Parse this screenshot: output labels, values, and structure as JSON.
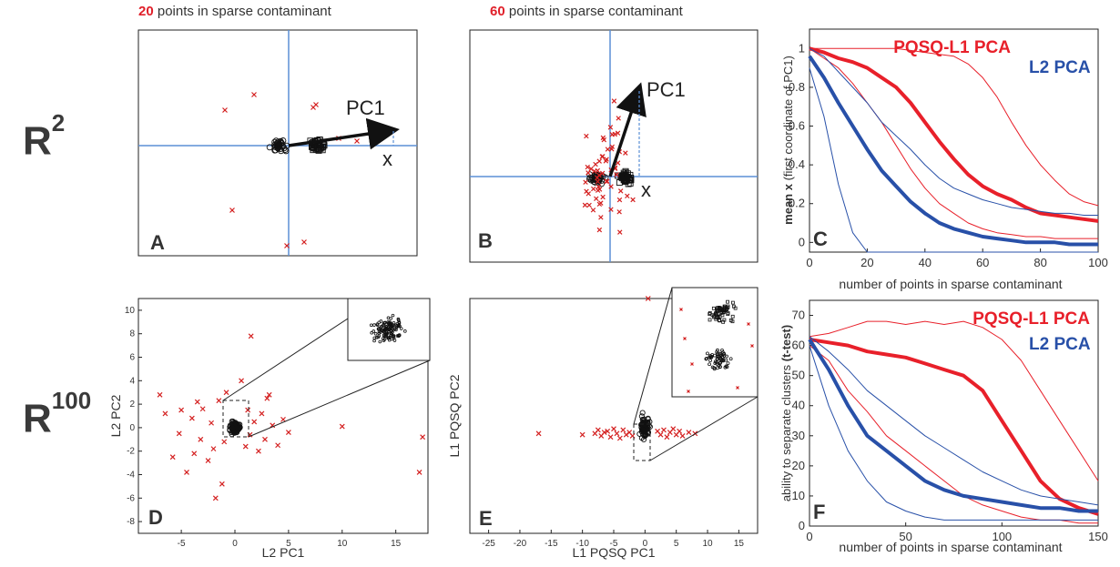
{
  "header": {
    "a": {
      "count": "20",
      "rest": " points in sparse contaminant"
    },
    "b": {
      "count": "60",
      "rest": " points in sparse contaminant"
    }
  },
  "row_labels": {
    "r2": {
      "base": "R",
      "sup": "2"
    },
    "r100": {
      "base": "R",
      "sup": "100"
    }
  },
  "panels": {
    "A": {
      "letter": "A",
      "arrow_label": "PC1",
      "x_label": "x"
    },
    "B": {
      "letter": "B",
      "arrow_label": "PC1",
      "x_label": "x"
    },
    "C": {
      "letter": "C"
    },
    "D": {
      "letter": "D",
      "xlabel": "L2 PC1",
      "ylabel": "L2  PC2"
    },
    "E": {
      "letter": "E",
      "xlabel": "L1 PQSQ PC1",
      "ylabel": "L1 PQSQ PC2"
    },
    "F": {
      "letter": "F"
    }
  },
  "colors": {
    "red": "#e8202a",
    "blue": "#2850a8",
    "axis_line": "#5b8fd6",
    "marker": "#d42020"
  },
  "chart_data": [
    {
      "id": "C",
      "type": "line",
      "xlabel": "number of points in sparse contaminant",
      "ylabel_bold": "mean x",
      "ylabel_rest": " (first coordinate of PC1)",
      "xlim": [
        0,
        100
      ],
      "ylim": [
        -0.05,
        1.1
      ],
      "xticks": [
        0,
        20,
        40,
        60,
        80,
        100
      ],
      "yticks": [
        0,
        0.2,
        0.4,
        0.6,
        0.8,
        1
      ],
      "legend": [
        "PQSQ-L1 PCA",
        "L2 PCA"
      ],
      "legend_position": "top-right",
      "x": [
        0,
        5,
        10,
        15,
        20,
        25,
        30,
        35,
        40,
        45,
        50,
        55,
        60,
        65,
        70,
        75,
        80,
        85,
        90,
        95,
        100
      ],
      "series": [
        {
          "name": "PQSQ-L1 PCA",
          "color": "red",
          "kind": "mean",
          "values": [
            1.0,
            0.98,
            0.95,
            0.93,
            0.9,
            0.85,
            0.8,
            0.72,
            0.62,
            0.52,
            0.43,
            0.35,
            0.29,
            0.25,
            0.22,
            0.18,
            0.15,
            0.14,
            0.13,
            0.12,
            0.11
          ]
        },
        {
          "name": "PQSQ-L1 PCA",
          "color": "red",
          "kind": "upper",
          "values": [
            1.0,
            1.0,
            1.0,
            1.0,
            1.0,
            1.0,
            1.0,
            0.99,
            0.98,
            0.97,
            0.96,
            0.92,
            0.85,
            0.75,
            0.62,
            0.5,
            0.4,
            0.32,
            0.25,
            0.21,
            0.19
          ]
        },
        {
          "name": "PQSQ-L1 PCA",
          "color": "red",
          "kind": "lower",
          "values": [
            1.0,
            0.95,
            0.9,
            0.82,
            0.72,
            0.62,
            0.5,
            0.38,
            0.28,
            0.2,
            0.15,
            0.1,
            0.07,
            0.05,
            0.04,
            0.03,
            0.03,
            0.02,
            0.02,
            0.02,
            0.02
          ]
        },
        {
          "name": "L2 PCA",
          "color": "blue",
          "kind": "mean",
          "values": [
            0.96,
            0.85,
            0.72,
            0.6,
            0.48,
            0.37,
            0.29,
            0.21,
            0.15,
            0.1,
            0.07,
            0.05,
            0.03,
            0.02,
            0.01,
            0.0,
            0.0,
            0.0,
            -0.01,
            -0.01,
            -0.01
          ]
        },
        {
          "name": "L2 PCA",
          "color": "blue",
          "kind": "upper",
          "values": [
            1.0,
            0.96,
            0.88,
            0.8,
            0.72,
            0.62,
            0.55,
            0.48,
            0.4,
            0.33,
            0.28,
            0.25,
            0.22,
            0.2,
            0.18,
            0.17,
            0.16,
            0.15,
            0.15,
            0.14,
            0.14
          ]
        },
        {
          "name": "L2 PCA",
          "color": "blue",
          "kind": "lower",
          "values": [
            0.9,
            0.65,
            0.3,
            0.05,
            -0.05,
            -0.05,
            -0.05,
            -0.05,
            -0.05,
            -0.05,
            -0.05,
            -0.05,
            -0.05,
            -0.05,
            -0.05,
            -0.05,
            -0.05,
            -0.05,
            -0.05,
            -0.05,
            -0.05
          ]
        }
      ]
    },
    {
      "id": "F",
      "type": "line",
      "xlabel": "number of points in sparse contaminant",
      "ylabel": "ability to separate clusters ",
      "ylabel_bold": "(t-test)",
      "xlim": [
        0,
        150
      ],
      "ylim": [
        0,
        75
      ],
      "xticks": [
        0,
        50,
        100,
        150
      ],
      "yticks": [
        0,
        10,
        20,
        30,
        40,
        50,
        60,
        70
      ],
      "legend": [
        "PQSQ-L1 PCA",
        "L2 PCA"
      ],
      "legend_position": "top-right",
      "x": [
        0,
        10,
        20,
        30,
        40,
        50,
        60,
        70,
        80,
        90,
        100,
        110,
        120,
        130,
        140,
        150
      ],
      "series": [
        {
          "name": "PQSQ-L1 PCA",
          "color": "red",
          "kind": "mean",
          "values": [
            62,
            61,
            60,
            58,
            57,
            56,
            54,
            52,
            50,
            45,
            35,
            25,
            15,
            9,
            6,
            4
          ]
        },
        {
          "name": "PQSQ-L1 PCA",
          "color": "red",
          "kind": "upper",
          "values": [
            63,
            64,
            66,
            68,
            68,
            67,
            68,
            67,
            68,
            66,
            62,
            55,
            45,
            35,
            25,
            15
          ]
        },
        {
          "name": "PQSQ-L1 PCA",
          "color": "red",
          "kind": "lower",
          "values": [
            60,
            55,
            45,
            38,
            30,
            25,
            20,
            15,
            10,
            7,
            5,
            3,
            2,
            2,
            1,
            1
          ]
        },
        {
          "name": "L2 PCA",
          "color": "blue",
          "kind": "mean",
          "values": [
            62,
            52,
            40,
            30,
            25,
            20,
            15,
            12,
            10,
            9,
            8,
            7,
            6,
            6,
            5,
            5
          ]
        },
        {
          "name": "L2 PCA",
          "color": "blue",
          "kind": "upper",
          "values": [
            63,
            58,
            52,
            45,
            40,
            35,
            30,
            26,
            22,
            18,
            15,
            12,
            10,
            9,
            8,
            7
          ]
        },
        {
          "name": "L2 PCA",
          "color": "blue",
          "kind": "lower",
          "values": [
            60,
            40,
            25,
            15,
            8,
            5,
            3,
            2,
            2,
            2,
            2,
            2,
            2,
            2,
            2,
            2
          ]
        }
      ]
    },
    {
      "id": "D",
      "type": "scatter",
      "xlim": [
        -9,
        18
      ],
      "ylim": [
        -9,
        11
      ],
      "xticks": [
        -5,
        0,
        5,
        10,
        15
      ],
      "yticks": [
        -8,
        -6,
        -4,
        -2,
        0,
        2,
        4,
        6,
        8,
        10
      ],
      "outliers": [
        [
          -7,
          2.8
        ],
        [
          -6.5,
          1.2
        ],
        [
          -5.8,
          -2.5
        ],
        [
          -5.2,
          -0.5
        ],
        [
          -5,
          1.5
        ],
        [
          -4.5,
          -3.8
        ],
        [
          -4,
          0.8
        ],
        [
          -3.8,
          -2.2
        ],
        [
          -3.5,
          2.2
        ],
        [
          -3.2,
          -1
        ],
        [
          -3,
          1.6
        ],
        [
          -2.5,
          -2.8
        ],
        [
          -2.2,
          0.4
        ],
        [
          -2,
          -1.8
        ],
        [
          -1.8,
          -6
        ],
        [
          -1.5,
          2.3
        ],
        [
          -1.2,
          -4.8
        ],
        [
          -1,
          -1.2
        ],
        [
          -0.8,
          3
        ],
        [
          0.6,
          4
        ],
        [
          1,
          -1.6
        ],
        [
          1.2,
          1.5
        ],
        [
          1.4,
          -0.6
        ],
        [
          1.5,
          7.8
        ],
        [
          1.8,
          0.5
        ],
        [
          2.2,
          -2
        ],
        [
          2.5,
          1.2
        ],
        [
          2.8,
          -1
        ],
        [
          3,
          2.5
        ],
        [
          3.2,
          2.8
        ],
        [
          3.5,
          0.2
        ],
        [
          4,
          -1.5
        ],
        [
          4.5,
          0.7
        ],
        [
          5,
          -0.4
        ],
        [
          10,
          0.1
        ],
        [
          17.5,
          -0.8
        ],
        [
          17.2,
          -3.8
        ]
      ]
    },
    {
      "id": "E",
      "type": "scatter",
      "xlim": [
        -28,
        18
      ],
      "ylim": [
        -9,
        11
      ],
      "xticks": [
        -25,
        -20,
        -15,
        -10,
        -5,
        0,
        5,
        10,
        15
      ],
      "outliers": [
        [
          -17,
          -0.5
        ],
        [
          -10,
          -0.6
        ],
        [
          -8,
          -0.5
        ],
        [
          -7.5,
          -0.2
        ],
        [
          -7,
          -0.7
        ],
        [
          -6.5,
          -0.4
        ],
        [
          -6,
          -0.3
        ],
        [
          -5.5,
          -0.8
        ],
        [
          -5,
          -0.1
        ],
        [
          -4.5,
          -0.5
        ],
        [
          -4,
          -0.9
        ],
        [
          -3.5,
          -0.2
        ],
        [
          -3,
          -0.6
        ],
        [
          -2.5,
          -0.4
        ],
        [
          -2,
          -0.7
        ],
        [
          2,
          -0.3
        ],
        [
          2.5,
          -0.6
        ],
        [
          3,
          -0.2
        ],
        [
          3.5,
          -0.8
        ],
        [
          4,
          -0.4
        ],
        [
          4.5,
          -0.1
        ],
        [
          5,
          -0.6
        ],
        [
          5.5,
          -0.3
        ],
        [
          6,
          -0.7
        ],
        [
          7,
          -0.4
        ],
        [
          8,
          -0.5
        ],
        [
          0.5,
          11
        ]
      ]
    }
  ]
}
